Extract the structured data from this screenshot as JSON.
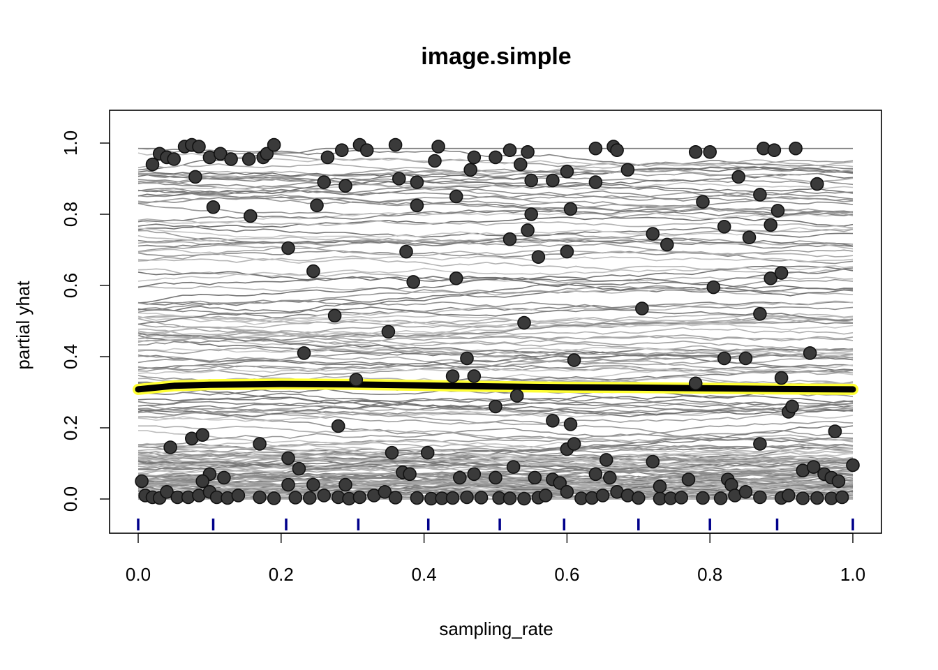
{
  "chart_data": {
    "type": "line",
    "title": "image.simple",
    "xlabel": "sampling_rate",
    "ylabel": "partial yhat",
    "xlim": [
      0.0,
      1.0
    ],
    "ylim": [
      -0.09,
      1.09
    ],
    "x_ticks": [
      "0.0",
      "0.2",
      "0.4",
      "0.6",
      "0.8",
      "1.0"
    ],
    "y_ticks": [
      "0.0",
      "0.2",
      "0.4",
      "0.6",
      "0.8",
      "1.0"
    ],
    "grid": false,
    "legend": "none",
    "colors": {
      "ice_lines": "#8c8c8c",
      "points": "#3a3a3a",
      "pdp_line": "#000000",
      "pdp_halo": "#ffff33",
      "rug": "#00008b"
    },
    "pdp": {
      "x": [
        0.0,
        0.05,
        0.1,
        0.2,
        0.3,
        0.4,
        0.5,
        0.6,
        0.7,
        0.8,
        0.9,
        1.0
      ],
      "y": [
        0.308,
        0.318,
        0.321,
        0.323,
        0.322,
        0.319,
        0.316,
        0.314,
        0.313,
        0.311,
        0.309,
        0.308
      ]
    },
    "rug_x": [
      0.0,
      0.105,
      0.207,
      0.308,
      0.406,
      0.506,
      0.596,
      0.7,
      0.8,
      0.894,
      1.0
    ],
    "ice_curve_count": 200,
    "observed_points": [
      [
        0.02,
        0.94
      ],
      [
        0.03,
        0.97
      ],
      [
        0.04,
        0.96
      ],
      [
        0.05,
        0.955
      ],
      [
        0.065,
        0.99
      ],
      [
        0.075,
        0.995
      ],
      [
        0.085,
        0.99
      ],
      [
        0.1,
        0.96
      ],
      [
        0.115,
        0.97
      ],
      [
        0.13,
        0.955
      ],
      [
        0.155,
        0.955
      ],
      [
        0.175,
        0.96
      ],
      [
        0.18,
        0.97
      ],
      [
        0.19,
        0.995
      ],
      [
        0.08,
        0.905
      ],
      [
        0.105,
        0.82
      ],
      [
        0.157,
        0.795
      ],
      [
        0.265,
        0.96
      ],
      [
        0.285,
        0.98
      ],
      [
        0.31,
        0.995
      ],
      [
        0.32,
        0.98
      ],
      [
        0.36,
        0.995
      ],
      [
        0.42,
        0.99
      ],
      [
        0.415,
        0.95
      ],
      [
        0.465,
        0.925
      ],
      [
        0.47,
        0.96
      ],
      [
        0.5,
        0.96
      ],
      [
        0.52,
        0.98
      ],
      [
        0.535,
        0.94
      ],
      [
        0.545,
        0.975
      ],
      [
        0.64,
        0.985
      ],
      [
        0.665,
        0.99
      ],
      [
        0.67,
        0.98
      ],
      [
        0.78,
        0.975
      ],
      [
        0.8,
        0.975
      ],
      [
        0.875,
        0.985
      ],
      [
        0.89,
        0.98
      ],
      [
        0.92,
        0.985
      ],
      [
        0.26,
        0.89
      ],
      [
        0.29,
        0.88
      ],
      [
        0.365,
        0.9
      ],
      [
        0.39,
        0.89
      ],
      [
        0.55,
        0.895
      ],
      [
        0.58,
        0.895
      ],
      [
        0.6,
        0.92
      ],
      [
        0.64,
        0.89
      ],
      [
        0.685,
        0.925
      ],
      [
        0.84,
        0.905
      ],
      [
        0.95,
        0.885
      ],
      [
        0.25,
        0.825
      ],
      [
        0.39,
        0.825
      ],
      [
        0.445,
        0.85
      ],
      [
        0.55,
        0.8
      ],
      [
        0.605,
        0.815
      ],
      [
        0.79,
        0.835
      ],
      [
        0.87,
        0.855
      ],
      [
        0.895,
        0.81
      ],
      [
        0.21,
        0.705
      ],
      [
        0.375,
        0.695
      ],
      [
        0.52,
        0.73
      ],
      [
        0.545,
        0.755
      ],
      [
        0.56,
        0.68
      ],
      [
        0.6,
        0.695
      ],
      [
        0.72,
        0.745
      ],
      [
        0.74,
        0.715
      ],
      [
        0.82,
        0.765
      ],
      [
        0.855,
        0.735
      ],
      [
        0.885,
        0.77
      ],
      [
        0.245,
        0.64
      ],
      [
        0.385,
        0.61
      ],
      [
        0.445,
        0.62
      ],
      [
        0.805,
        0.595
      ],
      [
        0.885,
        0.62
      ],
      [
        0.9,
        0.635
      ],
      [
        0.275,
        0.515
      ],
      [
        0.35,
        0.47
      ],
      [
        0.54,
        0.495
      ],
      [
        0.705,
        0.535
      ],
      [
        0.87,
        0.52
      ],
      [
        0.232,
        0.41
      ],
      [
        0.46,
        0.395
      ],
      [
        0.61,
        0.39
      ],
      [
        0.82,
        0.395
      ],
      [
        0.85,
        0.395
      ],
      [
        0.94,
        0.41
      ],
      [
        0.44,
        0.345
      ],
      [
        0.47,
        0.345
      ],
      [
        0.305,
        0.335
      ],
      [
        0.78,
        0.325
      ],
      [
        0.9,
        0.34
      ],
      [
        0.5,
        0.26
      ],
      [
        0.53,
        0.29
      ],
      [
        0.91,
        0.245
      ],
      [
        0.915,
        0.26
      ],
      [
        0.28,
        0.205
      ],
      [
        0.58,
        0.22
      ],
      [
        0.605,
        0.21
      ],
      [
        0.045,
        0.145
      ],
      [
        0.075,
        0.17
      ],
      [
        0.09,
        0.18
      ],
      [
        0.17,
        0.155
      ],
      [
        0.355,
        0.13
      ],
      [
        0.405,
        0.13
      ],
      [
        0.6,
        0.14
      ],
      [
        0.61,
        0.155
      ],
      [
        0.87,
        0.155
      ],
      [
        0.975,
        0.19
      ],
      [
        0.21,
        0.115
      ],
      [
        0.225,
        0.085
      ],
      [
        0.525,
        0.09
      ],
      [
        0.655,
        0.11
      ],
      [
        0.72,
        0.105
      ],
      [
        0.93,
        0.08
      ],
      [
        0.945,
        0.09
      ],
      [
        1.0,
        0.095
      ],
      [
        0.005,
        0.05
      ],
      [
        0.1,
        0.07
      ],
      [
        0.12,
        0.06
      ],
      [
        0.09,
        0.05
      ],
      [
        0.21,
        0.04
      ],
      [
        0.245,
        0.04
      ],
      [
        0.29,
        0.04
      ],
      [
        0.37,
        0.075
      ],
      [
        0.38,
        0.07
      ],
      [
        0.45,
        0.06
      ],
      [
        0.47,
        0.07
      ],
      [
        0.5,
        0.06
      ],
      [
        0.555,
        0.06
      ],
      [
        0.58,
        0.055
      ],
      [
        0.59,
        0.045
      ],
      [
        0.64,
        0.07
      ],
      [
        0.66,
        0.06
      ],
      [
        0.73,
        0.035
      ],
      [
        0.77,
        0.055
      ],
      [
        0.825,
        0.055
      ],
      [
        0.83,
        0.04
      ],
      [
        0.96,
        0.07
      ],
      [
        0.97,
        0.06
      ],
      [
        0.98,
        0.05
      ],
      [
        0.01,
        0.01
      ],
      [
        0.02,
        0.005
      ],
      [
        0.03,
        0.003
      ],
      [
        0.04,
        0.02
      ],
      [
        0.055,
        0.005
      ],
      [
        0.07,
        0.005
      ],
      [
        0.085,
        0.01
      ],
      [
        0.1,
        0.02
      ],
      [
        0.11,
        0.005
      ],
      [
        0.125,
        0.003
      ],
      [
        0.14,
        0.01
      ],
      [
        0.17,
        0.005
      ],
      [
        0.19,
        0.002
      ],
      [
        0.22,
        0.004
      ],
      [
        0.24,
        0.003
      ],
      [
        0.26,
        0.01
      ],
      [
        0.28,
        0.005
      ],
      [
        0.295,
        0.001
      ],
      [
        0.31,
        0.005
      ],
      [
        0.33,
        0.01
      ],
      [
        0.345,
        0.02
      ],
      [
        0.36,
        0.004
      ],
      [
        0.39,
        0.003
      ],
      [
        0.41,
        0.001
      ],
      [
        0.425,
        0.002
      ],
      [
        0.44,
        0.003
      ],
      [
        0.46,
        0.005
      ],
      [
        0.48,
        0.004
      ],
      [
        0.505,
        0.003
      ],
      [
        0.52,
        0.002
      ],
      [
        0.54,
        0.001
      ],
      [
        0.56,
        0.004
      ],
      [
        0.57,
        0.01
      ],
      [
        0.6,
        0.02
      ],
      [
        0.62,
        0.002
      ],
      [
        0.635,
        0.003
      ],
      [
        0.65,
        0.01
      ],
      [
        0.67,
        0.02
      ],
      [
        0.685,
        0.01
      ],
      [
        0.7,
        0.003
      ],
      [
        0.73,
        0.001
      ],
      [
        0.745,
        0.002
      ],
      [
        0.76,
        0.004
      ],
      [
        0.79,
        0.003
      ],
      [
        0.815,
        0.002
      ],
      [
        0.835,
        0.01
      ],
      [
        0.85,
        0.02
      ],
      [
        0.87,
        0.005
      ],
      [
        0.9,
        0.003
      ],
      [
        0.91,
        0.01
      ],
      [
        0.93,
        0.002
      ],
      [
        0.95,
        0.003
      ],
      [
        0.97,
        0.002
      ],
      [
        0.985,
        0.005
      ]
    ]
  }
}
